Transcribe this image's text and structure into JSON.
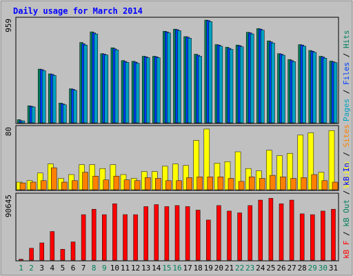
{
  "chart_data": {
    "type": "bar",
    "title": "Daily usage for March 2014",
    "colors": {
      "frame_bg": "#c0c0c0",
      "background": "#ffffff",
      "title": "#0000ff",
      "border": "#000000",
      "pages": "#00a0c0",
      "files": "#0040ff",
      "hits": "#00805c",
      "visits": "#ffff00",
      "sites": "#ff8000",
      "kb_in": "#0000ff",
      "kb_out": "#00805c",
      "kb_f": "#ff0000",
      "weekday": "#000000",
      "weekend": "#00805c"
    },
    "days": [
      "1",
      "2",
      "3",
      "4",
      "5",
      "6",
      "7",
      "8",
      "9",
      "10",
      "11",
      "12",
      "13",
      "14",
      "15",
      "16",
      "17",
      "18",
      "19",
      "20",
      "21",
      "22",
      "23",
      "24",
      "25",
      "26",
      "27",
      "28",
      "29",
      "30",
      "31"
    ],
    "weekend_days": [
      "1",
      "2",
      "8",
      "9",
      "15",
      "16",
      "22",
      "23",
      "29",
      "30"
    ],
    "panels": [
      {
        "id": "top",
        "ymax": 959,
        "ymax_label": "959",
        "side_label": {
          "pages": "Pages",
          "sep1": " / ",
          "files": "Files",
          "sep2": " / ",
          "hits": "Hits"
        },
        "series": [
          {
            "name": "Hits",
            "color_key": "hits",
            "values": [
              30,
              160,
              505,
              460,
              185,
              320,
              755,
              855,
              650,
              705,
              585,
              578,
              625,
              625,
              860,
              880,
              810,
              645,
              965,
              735,
              710,
              730,
              850,
              885,
              770,
              650,
              595,
              735,
              680,
              625,
              580
            ]
          },
          {
            "name": "Files",
            "color_key": "files",
            "values": [
              20,
              155,
              500,
              455,
              178,
              315,
              742,
              845,
              645,
              695,
              577,
              570,
              620,
              620,
              855,
              875,
              805,
              635,
              960,
              730,
              700,
              725,
              845,
              880,
              760,
              645,
              585,
              730,
              672,
              618,
              572
            ]
          },
          {
            "name": "Pages",
            "color_key": "pages",
            "values": [
              18,
              150,
              490,
              445,
              170,
              305,
              730,
              835,
              637,
              685,
              568,
              560,
              612,
              612,
              845,
              865,
              795,
              625,
              950,
              720,
              690,
              715,
              835,
              870,
              750,
              635,
              575,
              720,
              662,
              608,
              565
            ]
          }
        ]
      },
      {
        "id": "middle",
        "ymax": 80,
        "ymax_label": "80",
        "side_label": {
          "visits": "Visits",
          "sep1": " / ",
          "sites": "Sites"
        },
        "series": [
          {
            "name": "Visits",
            "color_key": "visits",
            "values": [
              10,
              12,
              22,
              34,
              15,
              20,
              33,
              33,
              28,
              33,
              20,
              15,
              24,
              24,
              31,
              34,
              32,
              65,
              80,
              35,
              37,
              50,
              28,
              25,
              52,
              45,
              48,
              72,
              75,
              23,
              78
            ]
          },
          {
            "name": "Sites",
            "color_key": "sites",
            "values": [
              9,
              10,
              12,
              29,
              10,
              12,
              23,
              18,
              13,
              18,
              13,
              12,
              16,
              15,
              12,
              12,
              16,
              17,
              17,
              17,
              15,
              11,
              17,
              15,
              19,
              17,
              15,
              16,
              20,
              12,
              10
            ]
          }
        ]
      },
      {
        "id": "bottom",
        "ymax": 90645,
        "ymax_label": "90645",
        "side_label": {
          "kb_f": "kB F",
          "sep1": " / ",
          "kb_out": "kB Out",
          "sep2": " / ",
          "kb_in": "kB In"
        },
        "series": [
          {
            "name": "kB F",
            "color_key": "kb_f",
            "values": [
              1300,
              16900,
              24600,
              40900,
              15600,
              26000,
              64900,
              72700,
              64900,
              80500,
              65000,
              64900,
              76500,
              79300,
              76500,
              77900,
              76500,
              71400,
              57200,
              77900,
              70100,
              67500,
              77900,
              85700,
              88300,
              80500,
              85700,
              66100,
              64900,
              70100,
              72700
            ]
          }
        ]
      }
    ]
  }
}
